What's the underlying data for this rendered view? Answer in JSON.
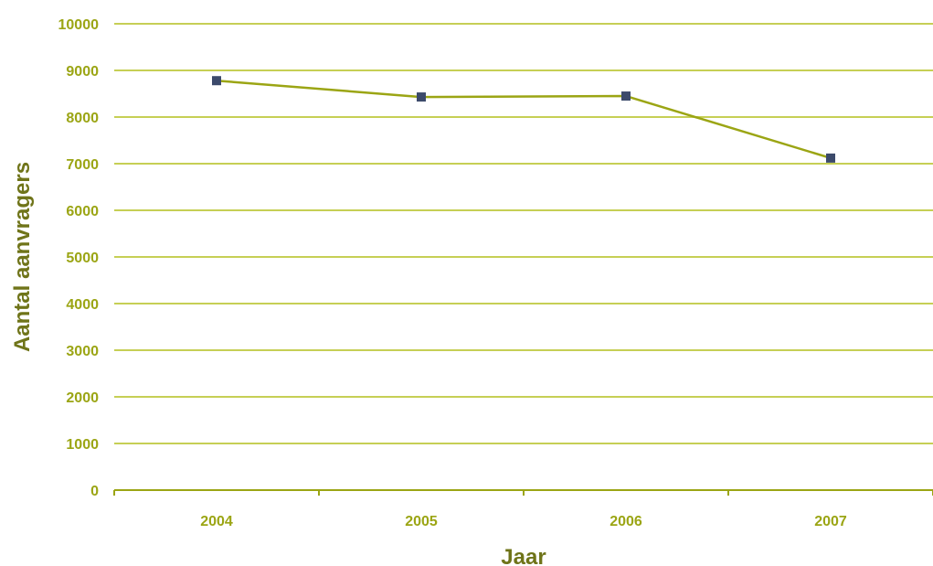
{
  "colors": {
    "line": "#9ba514",
    "grid": "#c6cf55",
    "axis": "#9ba514",
    "marker": "#3c4a6b",
    "tick_text": "#9ba514",
    "title_text": "#6f7419"
  },
  "chart_data": {
    "type": "line",
    "title": "",
    "xlabel": "Jaar",
    "ylabel": "Aantal aanvragers",
    "categories": [
      "2004",
      "2005",
      "2006",
      "2007"
    ],
    "series": [
      {
        "values": [
          8780,
          8430,
          8450,
          7120
        ]
      }
    ],
    "ylim": [
      0,
      10000
    ],
    "yticks": [
      "0",
      "1000",
      "2000",
      "3000",
      "4000",
      "5000",
      "6000",
      "7000",
      "8000",
      "9000",
      "10000"
    ],
    "grid": true,
    "legend": "none",
    "marker": "square"
  }
}
